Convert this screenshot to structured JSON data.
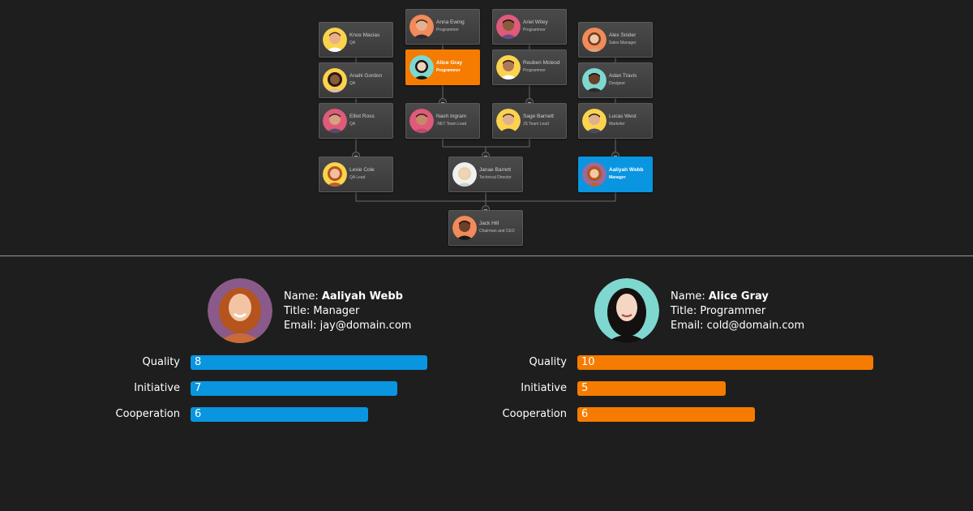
{
  "colors": {
    "background": "#1e1e1e",
    "node_bg": "#454545",
    "accent_orange": "#f57c00",
    "accent_blue": "#0a95e0"
  },
  "org_chart": {
    "nodes": [
      {
        "id": "knox",
        "name": "Knox Macias",
        "title": "QA"
      },
      {
        "id": "anahi",
        "name": "Anahi Gordon",
        "title": "QA"
      },
      {
        "id": "elliot",
        "name": "Elliot Ross",
        "title": "QA"
      },
      {
        "id": "lexie",
        "name": "Lexie Cole",
        "title": "QA Lead"
      },
      {
        "id": "anna",
        "name": "Anna Ewing",
        "title": "Programmer"
      },
      {
        "id": "alice",
        "name": "Alice Gray",
        "title": "Programmer",
        "highlight": "orange"
      },
      {
        "id": "nash",
        "name": "Nash Ingram",
        "title": ".NET Team Lead"
      },
      {
        "id": "ariel",
        "name": "Ariel Wiley",
        "title": "Programmer"
      },
      {
        "id": "reuben",
        "name": "Reuben Mcleod",
        "title": "Programmer"
      },
      {
        "id": "sage",
        "name": "Sage Barnett",
        "title": "JS Team Lead"
      },
      {
        "id": "janae",
        "name": "Janae Barrett",
        "title": "Technical Director"
      },
      {
        "id": "alex",
        "name": "Alex Snider",
        "title": "Sales Manager"
      },
      {
        "id": "adan",
        "name": "Adan Travis",
        "title": "Designer"
      },
      {
        "id": "lucas",
        "name": "Lucas West",
        "title": "Marketer"
      },
      {
        "id": "aaliyah",
        "name": "Aaliyah Webb",
        "title": "Manager",
        "highlight": "blue"
      },
      {
        "id": "jack",
        "name": "Jack Hill",
        "title": "Chairman and CEO"
      }
    ]
  },
  "profiles": [
    {
      "name_label": "Name:",
      "name": "Aaliyah Webb",
      "title_label": "Title:",
      "title": "Manager",
      "email_label": "Email:",
      "email": "jay@domain.com",
      "avatar": "woman-curly-red-hair-avatar",
      "color": "#0a95e0",
      "metrics": [
        {
          "label": "Quality",
          "value": 8
        },
        {
          "label": "Initiative",
          "value": 7
        },
        {
          "label": "Cooperation",
          "value": 6
        }
      ]
    },
    {
      "name_label": "Name:",
      "name": "Alice Gray",
      "title_label": "Title:",
      "title": "Programmer",
      "email_label": "Email:",
      "email": "cold@domain.com",
      "avatar": "woman-dark-hair-avatar",
      "color": "#f57c00",
      "metrics": [
        {
          "label": "Quality",
          "value": 10
        },
        {
          "label": "Initiative",
          "value": 5
        },
        {
          "label": "Cooperation",
          "value": 6
        }
      ]
    }
  ],
  "metric_max": 10
}
